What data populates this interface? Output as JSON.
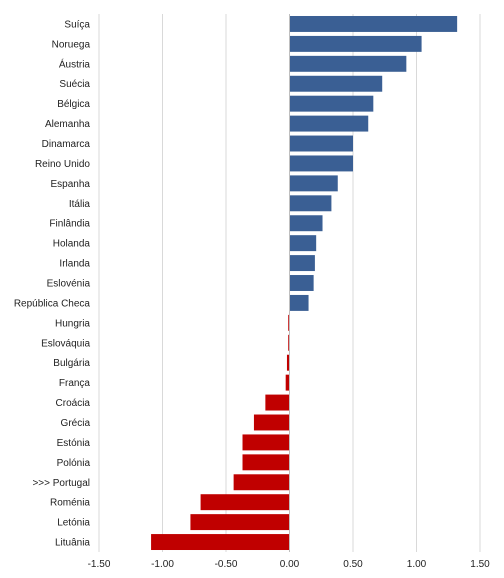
{
  "chart_data": {
    "type": "bar",
    "orientation": "horizontal",
    "title": "",
    "xlabel": "",
    "ylabel": "",
    "categories": [
      "Suíça",
      "Noruega",
      "Áustria",
      "Suécia",
      "Bélgica",
      "Alemanha",
      "Dinamarca",
      "Reino Unido",
      "Espanha",
      "Itália",
      "Finlândia",
      "Holanda",
      "Irlanda",
      "Eslovénia",
      "República Checa",
      "Hungria",
      "Eslováquia",
      "Bulgária",
      "França",
      "Croácia",
      "Grécia",
      "Estónia",
      "Polónia",
      ">>> Portugal",
      "Roménia",
      "Letónia",
      "Lituânia"
    ],
    "values": [
      1.32,
      1.04,
      0.92,
      0.73,
      0.66,
      0.62,
      0.5,
      0.5,
      0.38,
      0.33,
      0.26,
      0.21,
      0.2,
      0.19,
      0.15,
      -0.01,
      -0.01,
      -0.02,
      -0.03,
      -0.19,
      -0.28,
      -0.37,
      -0.37,
      -0.44,
      -0.7,
      -0.78,
      -1.09
    ],
    "xlim": [
      -1.5,
      1.5
    ],
    "xticks": [
      "-1.50",
      "-1.00",
      "-0.50",
      "0.00",
      "0.50",
      "1.00",
      "1.50"
    ],
    "colors": {
      "positive": "#3a5f94",
      "negative": "#c00000"
    },
    "grid": true,
    "legend": "none"
  }
}
